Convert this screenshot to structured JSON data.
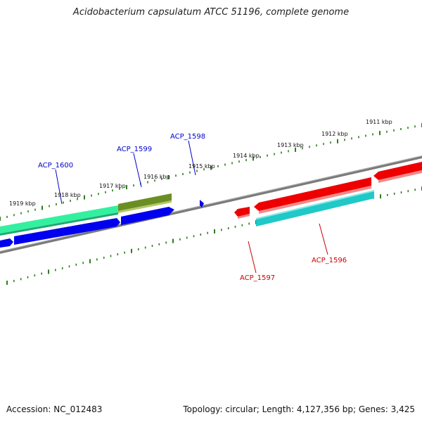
{
  "title": "Acidobacterium capsulatum ATCC 51196, complete genome",
  "footer": {
    "accession": "Accession: NC_012483",
    "summary": "Topology: circular; Length: 4,127,356 bp; Genes: 3,425"
  },
  "ticks": [
    {
      "label": "1911 kbp"
    },
    {
      "label": "1912 kbp"
    },
    {
      "label": "1913 kbp"
    },
    {
      "label": "1914 kbp"
    },
    {
      "label": "1915 kbp"
    },
    {
      "label": "1916 kbp"
    },
    {
      "label": "1917 kbp"
    },
    {
      "label": "1918 kbp"
    },
    {
      "label": "1919 kbp"
    }
  ],
  "gene_labels": [
    {
      "name": "ACP_1600",
      "color": "#0000cc"
    },
    {
      "name": "ACP_1599",
      "color": "#0000cc"
    },
    {
      "name": "ACP_1598",
      "color": "#0000cc"
    },
    {
      "name": "ACP_1597",
      "color": "#cc0000"
    },
    {
      "name": "ACP_1596",
      "color": "#cc0000"
    }
  ],
  "colors": {
    "backbone": "#808080",
    "tick": "#2e7d1e",
    "forward_cds": "#0000ee",
    "reverse_cds": "#ee0000",
    "forward_rna": "#33f0a0",
    "forward_olive": "#6b8e23",
    "reverse_cyan": "#20c8c8"
  }
}
